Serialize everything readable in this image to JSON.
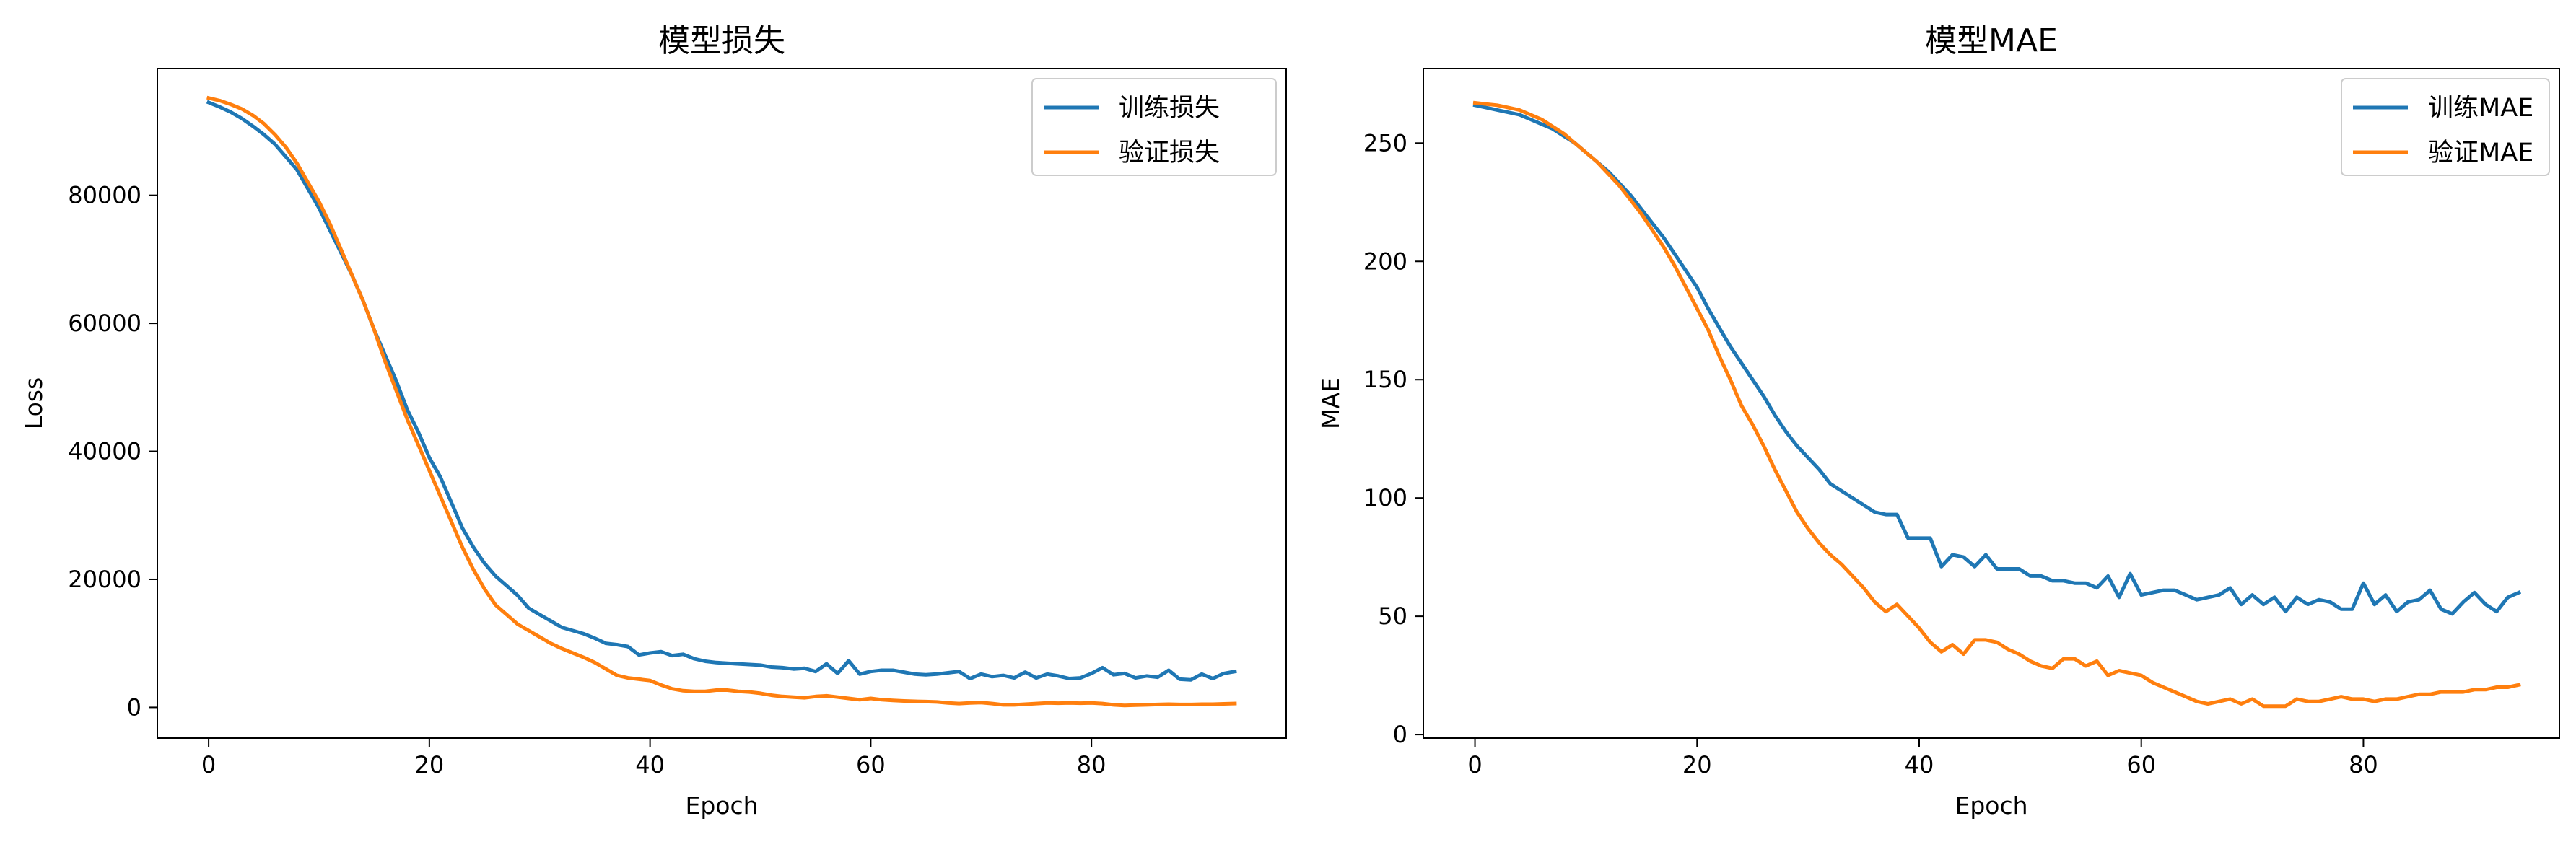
{
  "chart_data": [
    {
      "type": "line",
      "title": "模型损失",
      "xlabel": "Epoch",
      "ylabel": "Loss",
      "xlim": [
        -4.65,
        97.65
      ],
      "ylim": [
        -4800,
        99800
      ],
      "xticks": [
        0,
        20,
        40,
        60,
        80
      ],
      "xtick_labels": [
        "0",
        "20",
        "40",
        "60",
        "80"
      ],
      "yticks": [
        0,
        20000,
        40000,
        60000,
        80000
      ],
      "ytick_labels": [
        "0",
        "20000",
        "40000",
        "60000",
        "80000"
      ],
      "grid": false,
      "legend_position": "top-right",
      "series": [
        {
          "name": "训练损失",
          "color": "#1f77b4",
          "values": [
            94500,
            93800,
            93000,
            92000,
            90800,
            89500,
            88000,
            86000,
            84000,
            81000,
            78000,
            74500,
            71000,
            67500,
            63500,
            59000,
            55000,
            51000,
            46500,
            43000,
            39000,
            36000,
            32000,
            28000,
            25000,
            22500,
            20500,
            19000,
            17500,
            15500,
            14500,
            13500,
            12500,
            12000,
            11500,
            10800,
            10000,
            9800,
            9500,
            8200,
            8500,
            8700,
            8100,
            8300,
            7600,
            7200,
            7000,
            6900,
            6800,
            6700,
            6600,
            6300,
            6200,
            6000,
            6100,
            5600,
            6800,
            5300,
            7300,
            5200,
            5600,
            5800,
            5800,
            5500,
            5200,
            5100,
            5200,
            5400,
            5600,
            4500,
            5200,
            4800,
            5000,
            4600,
            5500,
            4600,
            5200,
            4900,
            4500,
            4600,
            5300,
            6200,
            5100,
            5300,
            4600,
            4900,
            4700,
            5800,
            4400,
            4300,
            5200,
            4500,
            5300,
            5600
          ]
        },
        {
          "name": "验证损失",
          "color": "#ff7f0e",
          "values": [
            95200,
            94800,
            94200,
            93500,
            92500,
            91200,
            89500,
            87500,
            85000,
            82000,
            79000,
            75500,
            71500,
            67500,
            63500,
            59000,
            54000,
            49500,
            45000,
            41000,
            37000,
            33000,
            29000,
            25000,
            21500,
            18500,
            16000,
            14500,
            13000,
            12000,
            11000,
            10000,
            9200,
            8500,
            7800,
            7000,
            6000,
            5000,
            4600,
            4400,
            4200,
            3500,
            2900,
            2600,
            2500,
            2500,
            2700,
            2700,
            2500,
            2400,
            2200,
            1900,
            1700,
            1600,
            1500,
            1700,
            1800,
            1600,
            1400,
            1200,
            1400,
            1200,
            1100,
            1000,
            950,
            900,
            850,
            700,
            600,
            700,
            750,
            600,
            400,
            400,
            500,
            600,
            700,
            650,
            700,
            650,
            700,
            600,
            400,
            300,
            350,
            400,
            450,
            500,
            450,
            450,
            500,
            500,
            550,
            600
          ]
        }
      ]
    },
    {
      "type": "line",
      "title": "模型MAE",
      "xlabel": "Epoch",
      "ylabel": "MAE",
      "xlim": [
        -4.65,
        97.65
      ],
      "ylim": [
        -1.5,
        281.5
      ],
      "xticks": [
        0,
        20,
        40,
        60,
        80
      ],
      "xtick_labels": [
        "0",
        "20",
        "40",
        "60",
        "80"
      ],
      "yticks": [
        0,
        50,
        100,
        150,
        200,
        250
      ],
      "ytick_labels": [
        "0",
        "50",
        "100",
        "150",
        "200",
        "250"
      ],
      "grid": false,
      "legend_position": "top-right",
      "series": [
        {
          "name": "训练MAE",
          "color": "#1f77b4",
          "values": [
            266,
            265,
            264,
            263,
            262,
            260,
            258,
            256,
            253,
            250,
            246,
            242,
            238,
            233,
            228,
            222,
            216,
            210,
            203,
            196,
            189,
            180,
            172,
            164,
            157,
            150,
            143,
            135,
            128,
            122,
            117,
            112,
            106,
            103,
            100,
            97,
            94,
            93,
            93,
            83,
            83,
            83,
            71,
            76,
            75,
            71,
            76,
            70,
            70,
            70,
            67,
            67,
            65,
            65,
            64,
            64,
            62,
            67,
            58,
            68,
            59,
            60,
            61,
            61,
            59,
            57,
            58,
            59,
            62,
            55,
            59,
            55,
            58,
            52,
            58,
            55,
            57,
            56,
            53,
            53,
            64,
            55,
            59,
            52,
            56,
            57,
            61,
            53,
            51,
            56,
            60,
            55,
            52,
            58,
            60
          ]
        },
        {
          "name": "验证MAE",
          "color": "#ff7f0e",
          "values": [
            267,
            266.5,
            266,
            265,
            264,
            262,
            260,
            257,
            254,
            250,
            246,
            242,
            237,
            232,
            226,
            220,
            213,
            206,
            198,
            189,
            180,
            171,
            160,
            150,
            139,
            131,
            122,
            112,
            103,
            94,
            87,
            81,
            76,
            72,
            67,
            62,
            56,
            52,
            55,
            50,
            45,
            39,
            35,
            38,
            34,
            40,
            40,
            39,
            36,
            34,
            31,
            29,
            28,
            32,
            32,
            29,
            31,
            25,
            27,
            26,
            25,
            22,
            20,
            18,
            16,
            14,
            13,
            14,
            15,
            13,
            15,
            12,
            12,
            12,
            15,
            14,
            14,
            15,
            16,
            15,
            15,
            14,
            15,
            15,
            16,
            17,
            17,
            18,
            18,
            18,
            19,
            19,
            20,
            20,
            21
          ]
        }
      ]
    }
  ]
}
